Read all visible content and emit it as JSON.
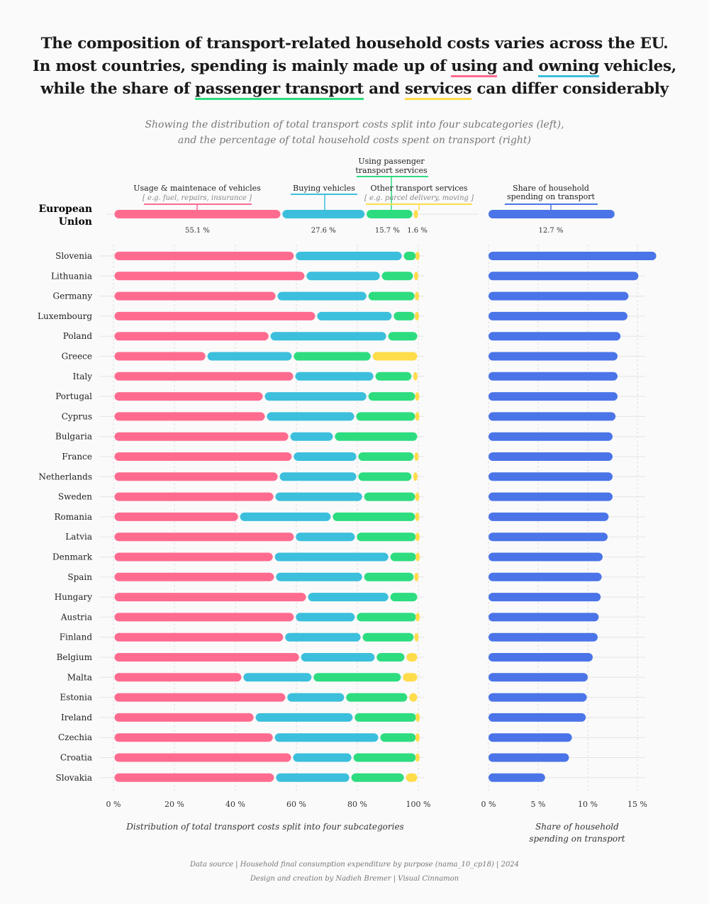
{
  "title": {
    "lines": [
      [
        {
          "text": "The composition of transport-related household costs varies across the EU."
        }
      ],
      [
        {
          "text": "In most countries, spending is mainly made up of "
        },
        {
          "text": "using",
          "color": "#ff6b8f"
        },
        {
          "text": " and "
        },
        {
          "text": "owning",
          "color": "#3bbfdc"
        },
        {
          "text": " vehicles,"
        }
      ],
      [
        {
          "text": "while the share of "
        },
        {
          "text": "passenger transport",
          "color": "#2ddc7f"
        },
        {
          "text": " and "
        },
        {
          "text": "services",
          "color": "#ffdc4a"
        },
        {
          "text": " can differ considerably"
        }
      ]
    ]
  },
  "subtitle": {
    "line1": "Showing the distribution of total transport costs split into four subcategories (left),",
    "line2": "and the percentage of total household costs spent on transport (right)"
  },
  "legend": {
    "usage": {
      "label": "Usage & maintenace of vehicles",
      "example": "[ e.g. fuel, repairs, insurance ]",
      "color": "#ff6b8f"
    },
    "buying": {
      "label": "Buying vehicles",
      "color": "#3bbfdc"
    },
    "passenger": {
      "label1": "Using passenger",
      "label2": "transport services",
      "color": "#2ddc7f"
    },
    "other": {
      "label": "Other transport services",
      "example": "[ e.g. parcel delivery, moving ]",
      "color": "#ffdc4a"
    },
    "share": {
      "label1": "Share of household",
      "label2": "spending on transport",
      "color": "#4a74e8"
    }
  },
  "eu": {
    "label1": "European",
    "label2": "Union",
    "values": [
      55.1,
      27.6,
      15.7,
      1.6
    ],
    "value_labels": [
      "55.1 %",
      "27.6 %",
      "15.7 %",
      "1.6 %"
    ],
    "share": 12.7,
    "share_label": "12.7 %"
  },
  "chart_data": [
    {
      "type": "bar",
      "stacked": true,
      "orientation": "horizontal",
      "xlabel": "Distribution of total transport costs split into four subcategories",
      "xlim": [
        0,
        100
      ],
      "xticks": [
        "0 %",
        "20 %",
        "40 %",
        "60 %",
        "80 %",
        "100 %"
      ],
      "grid": true,
      "categories": [
        "Slovenia",
        "Lithuania",
        "Germany",
        "Luxembourg",
        "Poland",
        "Greece",
        "Italy",
        "Portugal",
        "Cyprus",
        "Bulgaria",
        "France",
        "Netherlands",
        "Sweden",
        "Romania",
        "Latvia",
        "Denmark",
        "Spain",
        "Hungary",
        "Austria",
        "Finland",
        "Belgium",
        "Malta",
        "Estonia",
        "Ireland",
        "Czechia",
        "Croatia",
        "Slovakia"
      ],
      "series": [
        {
          "name": "Usage & maintenace of vehicles",
          "color": "#ff6b8f",
          "values": [
            59.5,
            63.0,
            53.5,
            66.5,
            51.2,
            30.5,
            59.3,
            49.3,
            50.0,
            57.7,
            58.8,
            54.2,
            52.8,
            41.2,
            59.5,
            52.6,
            53.0,
            63.5,
            59.5,
            56.0,
            61.2,
            42.3,
            56.7,
            46.3,
            52.6,
            58.6,
            53.0
          ]
        },
        {
          "name": "Buying vehicles",
          "color": "#3bbfdc",
          "values": [
            35.4,
            24.7,
            29.8,
            25.1,
            38.6,
            28.3,
            26.3,
            34.0,
            29.3,
            14.6,
            21.2,
            25.8,
            29.1,
            30.4,
            20.0,
            37.9,
            28.9,
            27.0,
            20.0,
            25.4,
            24.8,
            23.0,
            19.3,
            32.5,
            34.6,
            19.8,
            24.7
          ]
        },
        {
          "name": "Using passenger transport services",
          "color": "#2ddc7f",
          "values": [
            4.6,
            10.9,
            15.8,
            7.5,
            10.2,
            25.9,
            12.5,
            16.0,
            20.0,
            27.7,
            18.8,
            18.1,
            17.4,
            27.7,
            20.0,
            9.1,
            16.9,
            9.5,
            20.1,
            17.4,
            9.8,
            29.3,
            20.7,
            20.8,
            12.3,
            21.1,
            17.9
          ]
        },
        {
          "name": "Other transport services",
          "color": "#ffdc4a",
          "values": [
            0.5,
            1.4,
            0.9,
            0.9,
            0.0,
            15.3,
            1.9,
            0.7,
            0.7,
            0.0,
            1.2,
            1.9,
            0.7,
            0.7,
            0.5,
            0.4,
            1.2,
            0.0,
            0.4,
            1.2,
            4.2,
            5.4,
            3.3,
            0.4,
            0.5,
            0.5,
            4.4
          ]
        }
      ]
    },
    {
      "type": "bar",
      "orientation": "horizontal",
      "xlabel": "Share of household spending on transport",
      "xlim": [
        0,
        17
      ],
      "xticks": [
        "0 %",
        "5 %",
        "10 %",
        "15 %"
      ],
      "grid": true,
      "categories": [
        "Slovenia",
        "Lithuania",
        "Germany",
        "Luxembourg",
        "Poland",
        "Greece",
        "Italy",
        "Portugal",
        "Cyprus",
        "Bulgaria",
        "France",
        "Netherlands",
        "Sweden",
        "Romania",
        "Latvia",
        "Denmark",
        "Spain",
        "Hungary",
        "Austria",
        "Finland",
        "Belgium",
        "Malta",
        "Estonia",
        "Ireland",
        "Czechia",
        "Croatia",
        "Slovakia"
      ],
      "series": [
        {
          "name": "Share of household spending on transport",
          "color": "#4a74e8",
          "values": [
            16.9,
            15.1,
            14.1,
            14.0,
            13.3,
            13.0,
            13.0,
            13.0,
            12.8,
            12.5,
            12.5,
            12.5,
            12.5,
            12.1,
            12.0,
            11.5,
            11.4,
            11.3,
            11.1,
            11.0,
            10.5,
            10.0,
            9.9,
            9.8,
            8.4,
            8.1,
            5.7
          ]
        }
      ]
    }
  ],
  "footer": {
    "source": "Data source | Household final consumption expenditure by purpose (nama_10_cp18) | 2024",
    "credit": "Design and creation by Nadieh Bremer | Visual Cinnamon"
  }
}
